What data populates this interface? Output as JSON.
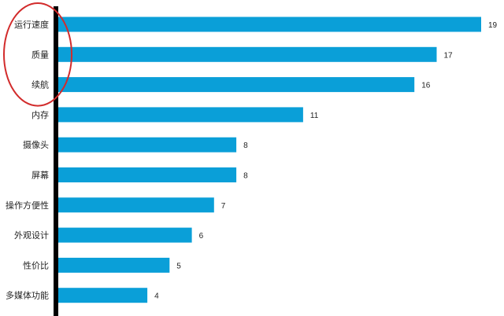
{
  "chart_data": {
    "type": "bar",
    "orientation": "horizontal",
    "categories": [
      "运行速度",
      "质量",
      "续航",
      "内存",
      "摄像头",
      "屏幕",
      "操作方便性",
      "外观设计",
      "性价比",
      "多媒体功能"
    ],
    "values": [
      19,
      17,
      16,
      11,
      8,
      8,
      7,
      6,
      5,
      4
    ],
    "title": "",
    "xlabel": "",
    "ylabel": "",
    "xlim": [
      0,
      19
    ],
    "grid": false,
    "legend": "none",
    "data_labels": true,
    "highlighted_categories": [
      "运行速度",
      "质量",
      "续航"
    ],
    "colors": {
      "bar": "#0a9fd8",
      "axis": "#000000",
      "highlight": "#d22b2b",
      "text": "#222222"
    }
  }
}
